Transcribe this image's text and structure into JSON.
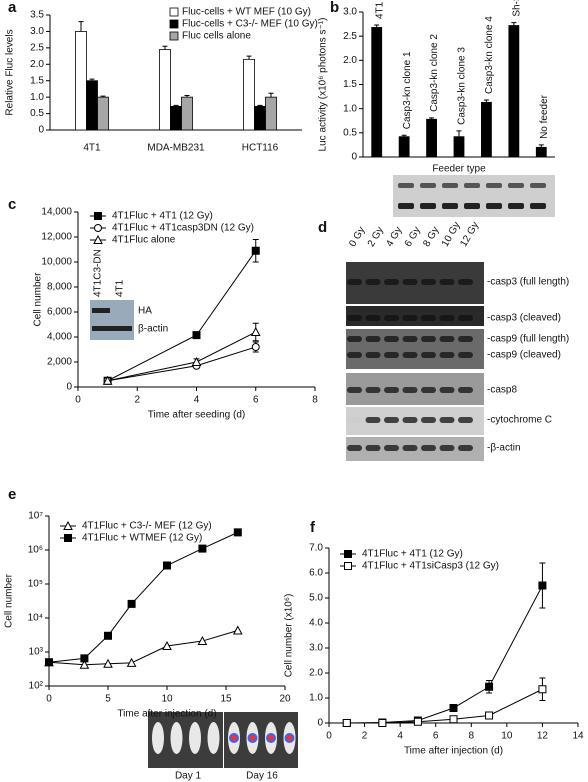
{
  "chart_data": [
    {
      "type": "bar",
      "panel": "a",
      "y_label": "Relative Fluc levels",
      "categories": [
        "4T1",
        "MDA-MB231",
        "HCT116"
      ],
      "series": [
        {
          "name": "Fluc-cells + WT MEF (10 Gy)",
          "color": "#ffffff",
          "values": [
            3.0,
            2.45,
            2.15
          ],
          "errors": [
            0.3,
            0.1,
            0.1
          ]
        },
        {
          "name": "Fluc-cells + C3-/- MEF (10 Gy)",
          "color": "#000000",
          "values": [
            1.5,
            0.72,
            0.72
          ],
          "errors": [
            0.05,
            0.03,
            0.03
          ]
        },
        {
          "name": "Fluc cells alone",
          "color": "#a6a6a6",
          "values": [
            1.0,
            1.0,
            1.0
          ],
          "errors": [
            0.03,
            0.05,
            0.12
          ]
        }
      ],
      "ylim": [
        0,
        3.5
      ],
      "yticks": [
        0,
        0.5,
        {
          "value": 1,
          "label": "1.0"
        },
        1.5,
        {
          "value": 2,
          "label": "2.0"
        },
        2.5,
        {
          "value": 3,
          "label": "3.0"
        },
        3.5
      ]
    },
    {
      "type": "bar",
      "panel": "b",
      "y_label": "Luc activity (x10⁶ photons s⁻¹)",
      "x_label": "Feeder type",
      "categories": [
        "4T1",
        "Casp3-kn clone 1",
        "Casp3-kn clone 2",
        "Casp3-kn clone 3",
        "Casp3-kn clone 4",
        "Sh-Scramble",
        "No feeder"
      ],
      "series": [
        {
          "color": "#000000",
          "values": [
            2.68,
            0.42,
            0.78,
            0.42,
            1.13,
            2.72,
            0.2
          ],
          "errors": [
            0.05,
            0.03,
            0.03,
            0.12,
            0.05,
            0.06,
            0.05
          ]
        }
      ],
      "ylim": [
        0,
        3
      ],
      "yticks": [
        0,
        0.5,
        {
          "value": 1,
          "label": "1.0"
        },
        1.5,
        {
          "value": 2,
          "label": "2.0"
        },
        2.5,
        {
          "value": 3,
          "label": "3.0"
        }
      ]
    },
    {
      "type": "line",
      "panel": "c",
      "y_label": "Cell number",
      "x_label": "Time after seeding (d)",
      "series": [
        {
          "name": "4T1Fluc + 4T1 (12 Gy)",
          "color": "#000000",
          "marker": "square",
          "filled": true,
          "x": [
            1,
            4,
            6
          ],
          "values": [
            500,
            4150,
            10900
          ],
          "errors": [
            0,
            0,
            900
          ]
        },
        {
          "name": "4T1Fluc + 4T1casp3DN (12 Gy)",
          "color": "#000000",
          "marker": "circle",
          "filled": false,
          "x": [
            1,
            4,
            6
          ],
          "values": [
            500,
            1700,
            3200
          ],
          "errors": [
            0,
            200,
            400
          ]
        },
        {
          "name": "4T1Fluc alone",
          "color": "#000000",
          "marker": "triangle",
          "filled": false,
          "x": [
            1,
            4,
            6
          ],
          "values": [
            500,
            2000,
            4400
          ],
          "errors": [
            0,
            250,
            700
          ]
        }
      ],
      "xlim": [
        0,
        8
      ],
      "xticks": [
        0,
        2,
        4,
        6,
        8
      ],
      "ylim": [
        0,
        14000
      ],
      "yticks": [
        0,
        {
          "value": 2000,
          "label": "2,000"
        },
        {
          "value": 4000,
          "label": "4,000"
        },
        {
          "value": 6000,
          "label": "6,000"
        },
        {
          "value": 8000,
          "label": "8,000"
        },
        {
          "value": 10000,
          "label": "10,000"
        },
        {
          "value": 12000,
          "label": "12,000"
        },
        {
          "value": 14000,
          "label": "14,000"
        }
      ]
    },
    {
      "type": "line",
      "panel": "e",
      "y_label": "Cell number",
      "x_label": "Time after injection (d)",
      "log_scale": true,
      "series": [
        {
          "name": "4T1Fluc + C3-/- MEF (12 Gy)",
          "color": "#000000",
          "marker": "triangle",
          "filled": false,
          "x": [
            0,
            3,
            5,
            7,
            10,
            13,
            16
          ],
          "values": [
            500,
            420,
            450,
            480,
            1500,
            2100,
            4300
          ]
        },
        {
          "name": "4T1Fluc + WTMEF (12 Gy)",
          "color": "#000000",
          "marker": "square",
          "filled": true,
          "x": [
            0,
            3,
            5,
            7,
            10,
            13,
            16
          ],
          "values": [
            500,
            650,
            3000,
            26000,
            350000,
            1100000,
            3300000
          ]
        }
      ],
      "xlim": [
        0,
        20
      ],
      "xticks": [
        0,
        5,
        10,
        15,
        20
      ],
      "ylim": [
        100,
        10000000
      ],
      "yticks": [
        {
          "value": 100,
          "label": "10²"
        },
        {
          "value": 1000,
          "label": "10³"
        },
        {
          "value": 10000,
          "label": "10⁴"
        },
        {
          "value": 100000,
          "label": "10⁵"
        },
        {
          "value": 1000000,
          "label": "10⁶"
        },
        {
          "value": 10000000,
          "label": "10⁷"
        }
      ]
    },
    {
      "type": "line",
      "panel": "f",
      "y_label": "Cell number (x10⁶)",
      "x_label": "Time after injection (d)",
      "series": [
        {
          "name": "4T1Fluc + 4T1 (12 Gy)",
          "color": "#000000",
          "marker": "square",
          "filled": true,
          "x": [
            1,
            3,
            5,
            7,
            9,
            12
          ],
          "values": [
            0,
            0.02,
            0.1,
            0.6,
            1.45,
            5.5
          ],
          "errors": [
            0,
            0,
            0,
            0.05,
            0.25,
            0.9
          ]
        },
        {
          "name": "4T1Fluc + 4T1siCasp3 (12 Gy)",
          "color": "#000000",
          "marker": "square",
          "filled": false,
          "x": [
            1,
            3,
            5,
            7,
            9,
            12
          ],
          "values": [
            0,
            0,
            0.05,
            0.15,
            0.3,
            1.35
          ],
          "errors": [
            0,
            0,
            0,
            0.05,
            0.1,
            0.45
          ]
        }
      ],
      "xlim": [
        0,
        14
      ],
      "xticks": [
        0,
        2,
        4,
        6,
        8,
        10,
        12,
        14
      ],
      "ylim": [
        0,
        7
      ],
      "yticks": [
        0,
        {
          "value": 1,
          "label": "1.0"
        },
        {
          "value": 2,
          "label": "2.0"
        },
        {
          "value": 3,
          "label": "3.0"
        },
        {
          "value": 4,
          "label": "4.0"
        },
        {
          "value": 5,
          "label": "5.0"
        },
        {
          "value": 6,
          "label": "6.0"
        },
        {
          "value": 7,
          "label": "7.0"
        }
      ]
    }
  ],
  "inset_c": {
    "lanes": [
      "4T1C3-DN",
      "4T1"
    ],
    "bands": [
      "HA",
      "β-actin"
    ]
  },
  "blot_d": {
    "panel": "d",
    "lanes": [
      "0 Gy",
      "2 Gy",
      "4 Gy",
      "6 Gy",
      "8 Gy",
      "10 Gy",
      "12 Gy"
    ],
    "bands": [
      "-casp3 (full length)",
      "-casp3 (cleaved)",
      "-casp9 (full length)",
      "-casp9 (cleaved)",
      "-casp8",
      "-cytochrome C",
      "-β-actin"
    ]
  },
  "image_e": {
    "labels": [
      "Day 1",
      "Day 16"
    ]
  }
}
